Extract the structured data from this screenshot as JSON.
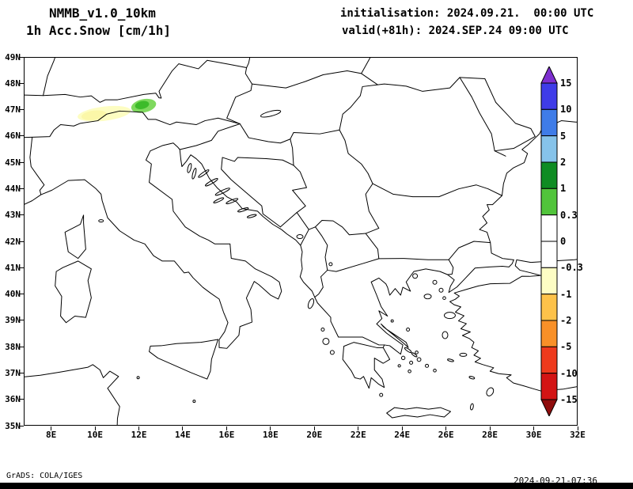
{
  "header": {
    "model": "NMMB_v1.0_10km",
    "field": "1h Acc.Snow [cm/1h]",
    "init_label": "initialisation: 2024.09.21.  00:00 UTC",
    "valid_label": "valid(+81h): 2024.SEP.24 09:00 UTC"
  },
  "map": {
    "y_axis_labels": [
      "49N",
      "48N",
      "47N",
      "46N",
      "45N",
      "44N",
      "43N",
      "42N",
      "41N",
      "40N",
      "39N",
      "38N",
      "37N",
      "36N",
      "35N"
    ],
    "x_axis_labels": [
      "8E",
      "10E",
      "12E",
      "14E",
      "16E",
      "18E",
      "20E",
      "22E",
      "24E",
      "26E",
      "28E",
      "30E",
      "32E"
    ],
    "snow_patches": [
      {
        "name": "alps-pale-yellow-patch",
        "color": "#fdfdc2",
        "area": "9.5E-11.7E around 47N"
      },
      {
        "name": "alps-green-patch",
        "color": "#51c43b",
        "area": "11.7E-12.7E around 47.2N"
      }
    ]
  },
  "colorbar": {
    "labels": [
      "15",
      "10",
      "5",
      "2",
      "1",
      "0.3",
      "0",
      "-0.3",
      "-1",
      "-2",
      "-5",
      "-10",
      "-15"
    ],
    "colors": [
      "#7e2fd0",
      "#3f3ce8",
      "#3f7ce8",
      "#86c3ea",
      "#0f8c23",
      "#51c43b",
      "#ffffff",
      "#ffffff",
      "#fdfdc4",
      "#fdc24a",
      "#f89028",
      "#ee3a1d",
      "#d31414",
      "#8f0d0d"
    ]
  },
  "footer": {
    "credit": "GrADS: COLA/IGES",
    "timestamp": "2024-09-21-07:36"
  }
}
